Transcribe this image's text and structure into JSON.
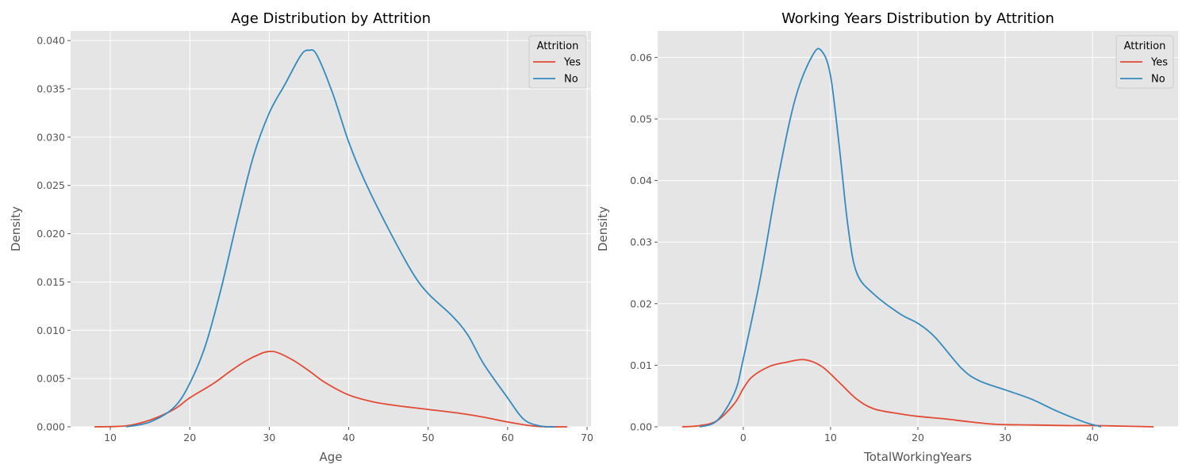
{
  "colors": {
    "background": "#E5E5E5",
    "grid": "#FFFFFF",
    "yes": "#E24A33",
    "no": "#348ABD"
  },
  "chart_data": [
    {
      "type": "line",
      "title": "Age Distribution by Attrition",
      "xlabel": "Age",
      "ylabel": "Density",
      "xlim": [
        5,
        70.5
      ],
      "ylim": [
        0,
        0.041
      ],
      "xticks": [
        10,
        20,
        30,
        40,
        50,
        60,
        70
      ],
      "yticks": [
        0.0,
        0.005,
        0.01,
        0.015,
        0.02,
        0.025,
        0.03,
        0.035,
        0.04
      ],
      "ytick_labels": [
        "0.000",
        "0.005",
        "0.010",
        "0.015",
        "0.020",
        "0.025",
        "0.030",
        "0.035",
        "0.040"
      ],
      "grid": true,
      "legend": {
        "title": "Attrition",
        "position": "top-right",
        "entries": [
          "Yes",
          "No"
        ]
      },
      "series": [
        {
          "name": "Yes",
          "x": [
            8,
            12,
            15,
            18,
            20,
            23,
            25,
            27,
            29,
            30,
            31,
            33,
            35,
            37,
            40,
            43,
            46,
            50,
            54,
            57,
            60,
            63,
            65,
            67.5
          ],
          "y": [
            0.0,
            0.0001,
            0.0007,
            0.0018,
            0.003,
            0.0045,
            0.0057,
            0.0068,
            0.0076,
            0.0078,
            0.0077,
            0.0069,
            0.0058,
            0.0046,
            0.0033,
            0.0026,
            0.0022,
            0.0018,
            0.0014,
            0.001,
            0.0005,
            0.0001,
            0.0,
            0.0
          ]
        },
        {
          "name": "No",
          "x": [
            12,
            15,
            18,
            20,
            22,
            24,
            26,
            28,
            30,
            32,
            34,
            35,
            36,
            38,
            40,
            42,
            45,
            48,
            50,
            53,
            55,
            57,
            60,
            62,
            64,
            66
          ],
          "y": [
            0.0,
            0.0005,
            0.002,
            0.0045,
            0.0085,
            0.0145,
            0.0215,
            0.028,
            0.0325,
            0.0355,
            0.0385,
            0.039,
            0.0385,
            0.0345,
            0.0295,
            0.0255,
            0.0205,
            0.016,
            0.0138,
            0.0115,
            0.0095,
            0.0065,
            0.003,
            0.0008,
            0.0001,
            0.0
          ]
        }
      ]
    },
    {
      "type": "line",
      "title": "Working Years Distribution by Attrition",
      "xlabel": "TotalWorkingYears",
      "ylabel": "Density",
      "xlim": [
        -9.8,
        49.8
      ],
      "ylim": [
        0,
        0.0643
      ],
      "xticks": [
        0,
        10,
        20,
        30,
        40
      ],
      "yticks": [
        0.0,
        0.01,
        0.02,
        0.03,
        0.04,
        0.05,
        0.06
      ],
      "ytick_labels": [
        "0.00",
        "0.01",
        "0.02",
        "0.03",
        "0.04",
        "0.05",
        "0.06"
      ],
      "grid": true,
      "legend": {
        "title": "Attrition",
        "position": "top-right",
        "entries": [
          "Yes",
          "No"
        ]
      },
      "series": [
        {
          "name": "Yes",
          "x": [
            -7,
            -5,
            -3,
            -1,
            0,
            1,
            3,
            5,
            7,
            9,
            11,
            13,
            15,
            18,
            20,
            23,
            26,
            29,
            33,
            37,
            40,
            44,
            47
          ],
          "y": [
            0.0,
            0.0002,
            0.001,
            0.0038,
            0.0062,
            0.0081,
            0.0098,
            0.0105,
            0.0109,
            0.0098,
            0.0072,
            0.0045,
            0.0029,
            0.0021,
            0.0017,
            0.0013,
            0.0008,
            0.0004,
            0.0003,
            0.0002,
            0.0002,
            0.0001,
            0.0
          ]
        },
        {
          "name": "No",
          "x": [
            -5,
            -3,
            -1,
            0,
            2,
            4,
            6,
            8,
            9,
            10,
            11,
            12,
            13,
            15,
            18,
            20,
            22,
            25,
            27,
            30,
            33,
            36,
            39,
            41
          ],
          "y": [
            0.0,
            0.001,
            0.0055,
            0.011,
            0.0245,
            0.0405,
            0.0535,
            0.0605,
            0.061,
            0.057,
            0.0455,
            0.0325,
            0.025,
            0.0215,
            0.0183,
            0.0168,
            0.0145,
            0.0095,
            0.0075,
            0.006,
            0.0045,
            0.0025,
            0.0008,
            0.0
          ]
        }
      ]
    }
  ]
}
